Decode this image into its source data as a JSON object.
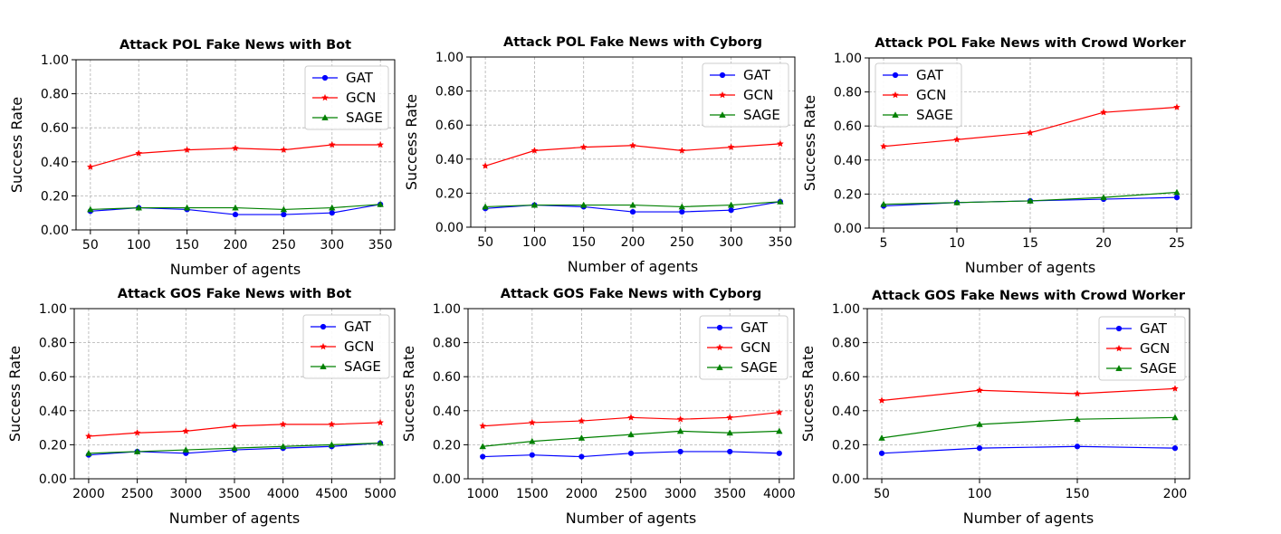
{
  "colors": {
    "GAT": "#0000ff",
    "GCN": "#ff0000",
    "SAGE": "#008000"
  },
  "chart_data": [
    {
      "type": "line",
      "title": "Attack POL Fake News with Bot",
      "xlabel": "Number of agents",
      "ylabel": "Success Rate",
      "x": [
        50,
        100,
        150,
        200,
        250,
        300,
        350
      ],
      "xticks": [
        "50",
        "100",
        "150",
        "200",
        "250",
        "300",
        "350"
      ],
      "ylim": [
        0,
        1
      ],
      "yticks": [
        "0.00",
        "0.20",
        "0.40",
        "0.60",
        "0.80",
        "1.00"
      ],
      "grid": true,
      "legend": "top-right",
      "series": [
        {
          "name": "GAT",
          "marker": "circle",
          "values": [
            0.11,
            0.13,
            0.12,
            0.09,
            0.09,
            0.1,
            0.15
          ]
        },
        {
          "name": "GCN",
          "marker": "star",
          "values": [
            0.37,
            0.45,
            0.47,
            0.48,
            0.47,
            0.5,
            0.5
          ]
        },
        {
          "name": "SAGE",
          "marker": "triangle",
          "values": [
            0.12,
            0.13,
            0.13,
            0.13,
            0.12,
            0.13,
            0.15
          ]
        }
      ]
    },
    {
      "type": "line",
      "title": "Attack POL Fake News with Cyborg",
      "xlabel": "Number of agents",
      "ylabel": "Success Rate",
      "x": [
        50,
        100,
        150,
        200,
        250,
        300,
        350
      ],
      "xticks": [
        "50",
        "100",
        "150",
        "200",
        "250",
        "300",
        "350"
      ],
      "ylim": [
        0,
        1
      ],
      "yticks": [
        "0.00",
        "0.20",
        "0.40",
        "0.60",
        "0.80",
        "1.00"
      ],
      "grid": true,
      "legend": "top-right",
      "series": [
        {
          "name": "GAT",
          "marker": "circle",
          "values": [
            0.11,
            0.13,
            0.12,
            0.09,
            0.09,
            0.1,
            0.15
          ]
        },
        {
          "name": "GCN",
          "marker": "star",
          "values": [
            0.36,
            0.45,
            0.47,
            0.48,
            0.45,
            0.47,
            0.49
          ]
        },
        {
          "name": "SAGE",
          "marker": "triangle",
          "values": [
            0.12,
            0.13,
            0.13,
            0.13,
            0.12,
            0.13,
            0.15
          ]
        }
      ]
    },
    {
      "type": "line",
      "title": "Attack POL Fake News with Crowd Worker",
      "xlabel": "Number of agents",
      "ylabel": "Success Rate",
      "x": [
        5,
        10,
        15,
        20,
        25
      ],
      "xticks": [
        "5",
        "10",
        "15",
        "20",
        "25"
      ],
      "ylim": [
        0,
        1
      ],
      "yticks": [
        "0.00",
        "0.20",
        "0.40",
        "0.60",
        "0.80",
        "1.00"
      ],
      "grid": true,
      "legend": "top-left",
      "series": [
        {
          "name": "GAT",
          "marker": "circle",
          "values": [
            0.13,
            0.15,
            0.16,
            0.17,
            0.18
          ]
        },
        {
          "name": "GCN",
          "marker": "star",
          "values": [
            0.48,
            0.52,
            0.56,
            0.68,
            0.71
          ]
        },
        {
          "name": "SAGE",
          "marker": "triangle",
          "values": [
            0.14,
            0.15,
            0.16,
            0.18,
            0.21
          ]
        }
      ]
    },
    {
      "type": "line",
      "title": "Attack GOS Fake News with Bot",
      "xlabel": "Number of agents",
      "ylabel": "Success Rate",
      "x": [
        2000,
        2500,
        3000,
        3500,
        4000,
        4500,
        5000
      ],
      "xticks": [
        "2000",
        "2500",
        "3000",
        "3500",
        "4000",
        "4500",
        "5000"
      ],
      "ylim": [
        0,
        1
      ],
      "yticks": [
        "0.00",
        "0.20",
        "0.40",
        "0.60",
        "0.80",
        "1.00"
      ],
      "grid": true,
      "legend": "top-right",
      "series": [
        {
          "name": "GAT",
          "marker": "circle",
          "values": [
            0.14,
            0.16,
            0.15,
            0.17,
            0.18,
            0.19,
            0.21
          ]
        },
        {
          "name": "GCN",
          "marker": "star",
          "values": [
            0.25,
            0.27,
            0.28,
            0.31,
            0.32,
            0.32,
            0.33
          ]
        },
        {
          "name": "SAGE",
          "marker": "triangle",
          "values": [
            0.15,
            0.16,
            0.17,
            0.18,
            0.19,
            0.2,
            0.21
          ]
        }
      ]
    },
    {
      "type": "line",
      "title": "Attack GOS Fake News with Cyborg",
      "xlabel": "Number of agents",
      "ylabel": "Success Rate",
      "x": [
        1000,
        1500,
        2000,
        2500,
        3000,
        3500,
        4000
      ],
      "xticks": [
        "1000",
        "1500",
        "2000",
        "2500",
        "3000",
        "3500",
        "4000"
      ],
      "ylim": [
        0,
        1
      ],
      "yticks": [
        "0.00",
        "0.20",
        "0.40",
        "0.60",
        "0.80",
        "1.00"
      ],
      "grid": true,
      "legend": "top-right",
      "series": [
        {
          "name": "GAT",
          "marker": "circle",
          "values": [
            0.13,
            0.14,
            0.13,
            0.15,
            0.16,
            0.16,
            0.15
          ]
        },
        {
          "name": "GCN",
          "marker": "star",
          "values": [
            0.31,
            0.33,
            0.34,
            0.36,
            0.35,
            0.36,
            0.39
          ]
        },
        {
          "name": "SAGE",
          "marker": "triangle",
          "values": [
            0.19,
            0.22,
            0.24,
            0.26,
            0.28,
            0.27,
            0.28
          ]
        }
      ]
    },
    {
      "type": "line",
      "title": "Attack GOS Fake News with Crowd Worker",
      "xlabel": "Number of agents",
      "ylabel": "Success Rate",
      "x": [
        50,
        100,
        150,
        200
      ],
      "xticks": [
        "50",
        "100",
        "150",
        "200"
      ],
      "ylim": [
        0,
        1
      ],
      "yticks": [
        "0.00",
        "0.20",
        "0.40",
        "0.60",
        "0.80",
        "1.00"
      ],
      "grid": true,
      "legend": "top-right",
      "series": [
        {
          "name": "GAT",
          "marker": "circle",
          "values": [
            0.15,
            0.18,
            0.19,
            0.18
          ]
        },
        {
          "name": "GCN",
          "marker": "star",
          "values": [
            0.46,
            0.52,
            0.5,
            0.53
          ]
        },
        {
          "name": "SAGE",
          "marker": "triangle",
          "values": [
            0.24,
            0.32,
            0.35,
            0.36
          ]
        }
      ]
    }
  ]
}
